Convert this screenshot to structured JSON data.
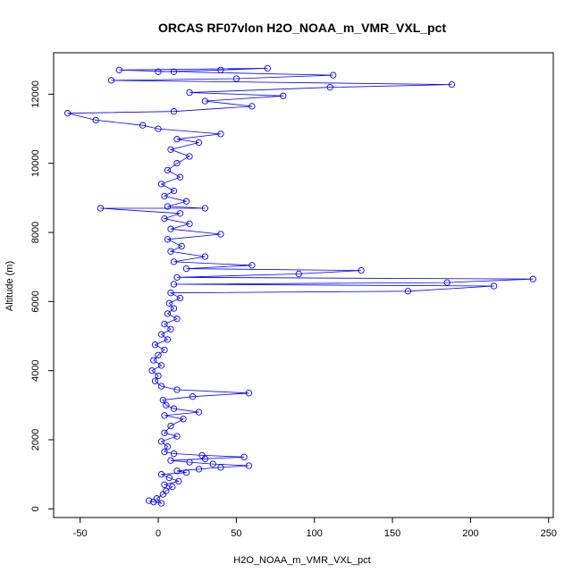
{
  "chart_data": {
    "type": "scatter",
    "title": "ORCAS RF07vlon H2O_NOAA_m_VMR_VXL_pct",
    "xlabel": "H2O_NOAA_m_VMR_VXL_pct",
    "ylabel": "Altitude (m)",
    "xlim": [
      -67,
      253
    ],
    "ylim": [
      -250,
      13200
    ],
    "xticks": [
      -50,
      0,
      50,
      100,
      150,
      200,
      250
    ],
    "yticks": [
      0,
      2000,
      4000,
      6000,
      8000,
      10000,
      12000
    ],
    "series": [
      {
        "color": "#0000ff",
        "marker": "open-circle",
        "connected": true,
        "points": [
          [
            -6,
            240
          ],
          [
            -3,
            200
          ],
          [
            2,
            160
          ],
          [
            -1,
            300
          ],
          [
            3,
            420
          ],
          [
            5,
            520
          ],
          [
            9,
            640
          ],
          [
            4,
            700
          ],
          [
            13,
            800
          ],
          [
            7,
            900
          ],
          [
            2,
            1000
          ],
          [
            18,
            1050
          ],
          [
            12,
            1100
          ],
          [
            26,
            1150
          ],
          [
            40,
            1200
          ],
          [
            58,
            1250
          ],
          [
            35,
            1300
          ],
          [
            20,
            1350
          ],
          [
            8,
            1400
          ],
          [
            30,
            1450
          ],
          [
            55,
            1500
          ],
          [
            28,
            1550
          ],
          [
            10,
            1600
          ],
          [
            4,
            1650
          ],
          [
            6,
            1800
          ],
          [
            2,
            1950
          ],
          [
            12,
            2100
          ],
          [
            4,
            2200
          ],
          [
            8,
            2400
          ],
          [
            16,
            2600
          ],
          [
            4,
            2700
          ],
          [
            26,
            2800
          ],
          [
            10,
            2900
          ],
          [
            5,
            3000
          ],
          [
            3,
            3150
          ],
          [
            22,
            3250
          ],
          [
            58,
            3350
          ],
          [
            12,
            3450
          ],
          [
            2,
            3550
          ],
          [
            -2,
            3700
          ],
          [
            0,
            3850
          ],
          [
            -4,
            4000
          ],
          [
            2,
            4150
          ],
          [
            -3,
            4300
          ],
          [
            0,
            4450
          ],
          [
            4,
            4600
          ],
          [
            -2,
            4750
          ],
          [
            6,
            4900
          ],
          [
            2,
            5050
          ],
          [
            8,
            5200
          ],
          [
            4,
            5350
          ],
          [
            12,
            5500
          ],
          [
            6,
            5650
          ],
          [
            10,
            5800
          ],
          [
            7,
            5950
          ],
          [
            14,
            6100
          ],
          [
            8,
            6250
          ],
          [
            160,
            6300
          ],
          [
            215,
            6450
          ],
          [
            10,
            6500
          ],
          [
            185,
            6550
          ],
          [
            240,
            6650
          ],
          [
            12,
            6700
          ],
          [
            90,
            6800
          ],
          [
            130,
            6900
          ],
          [
            18,
            6950
          ],
          [
            60,
            7050
          ],
          [
            10,
            7150
          ],
          [
            30,
            7300
          ],
          [
            8,
            7450
          ],
          [
            15,
            7600
          ],
          [
            6,
            7800
          ],
          [
            40,
            7950
          ],
          [
            8,
            8100
          ],
          [
            20,
            8250
          ],
          [
            4,
            8400
          ],
          [
            14,
            8550
          ],
          [
            -37,
            8700
          ],
          [
            30,
            8700
          ],
          [
            6,
            8750
          ],
          [
            18,
            8900
          ],
          [
            4,
            9050
          ],
          [
            10,
            9200
          ],
          [
            2,
            9400
          ],
          [
            14,
            9600
          ],
          [
            6,
            9800
          ],
          [
            12,
            10000
          ],
          [
            20,
            10200
          ],
          [
            8,
            10400
          ],
          [
            26,
            10600
          ],
          [
            12,
            10700
          ],
          [
            40,
            10850
          ],
          [
            0,
            11000
          ],
          [
            -10,
            11100
          ],
          [
            -40,
            11250
          ],
          [
            -58,
            11450
          ],
          [
            10,
            11500
          ],
          [
            60,
            11650
          ],
          [
            30,
            11800
          ],
          [
            80,
            11950
          ],
          [
            20,
            12050
          ],
          [
            110,
            12200
          ],
          [
            188,
            12280
          ],
          [
            -30,
            12400
          ],
          [
            50,
            12450
          ],
          [
            112,
            12550
          ],
          [
            10,
            12650
          ],
          [
            -25,
            12700
          ],
          [
            70,
            12750
          ],
          [
            40,
            12700
          ],
          [
            0,
            12650
          ]
        ]
      }
    ]
  }
}
